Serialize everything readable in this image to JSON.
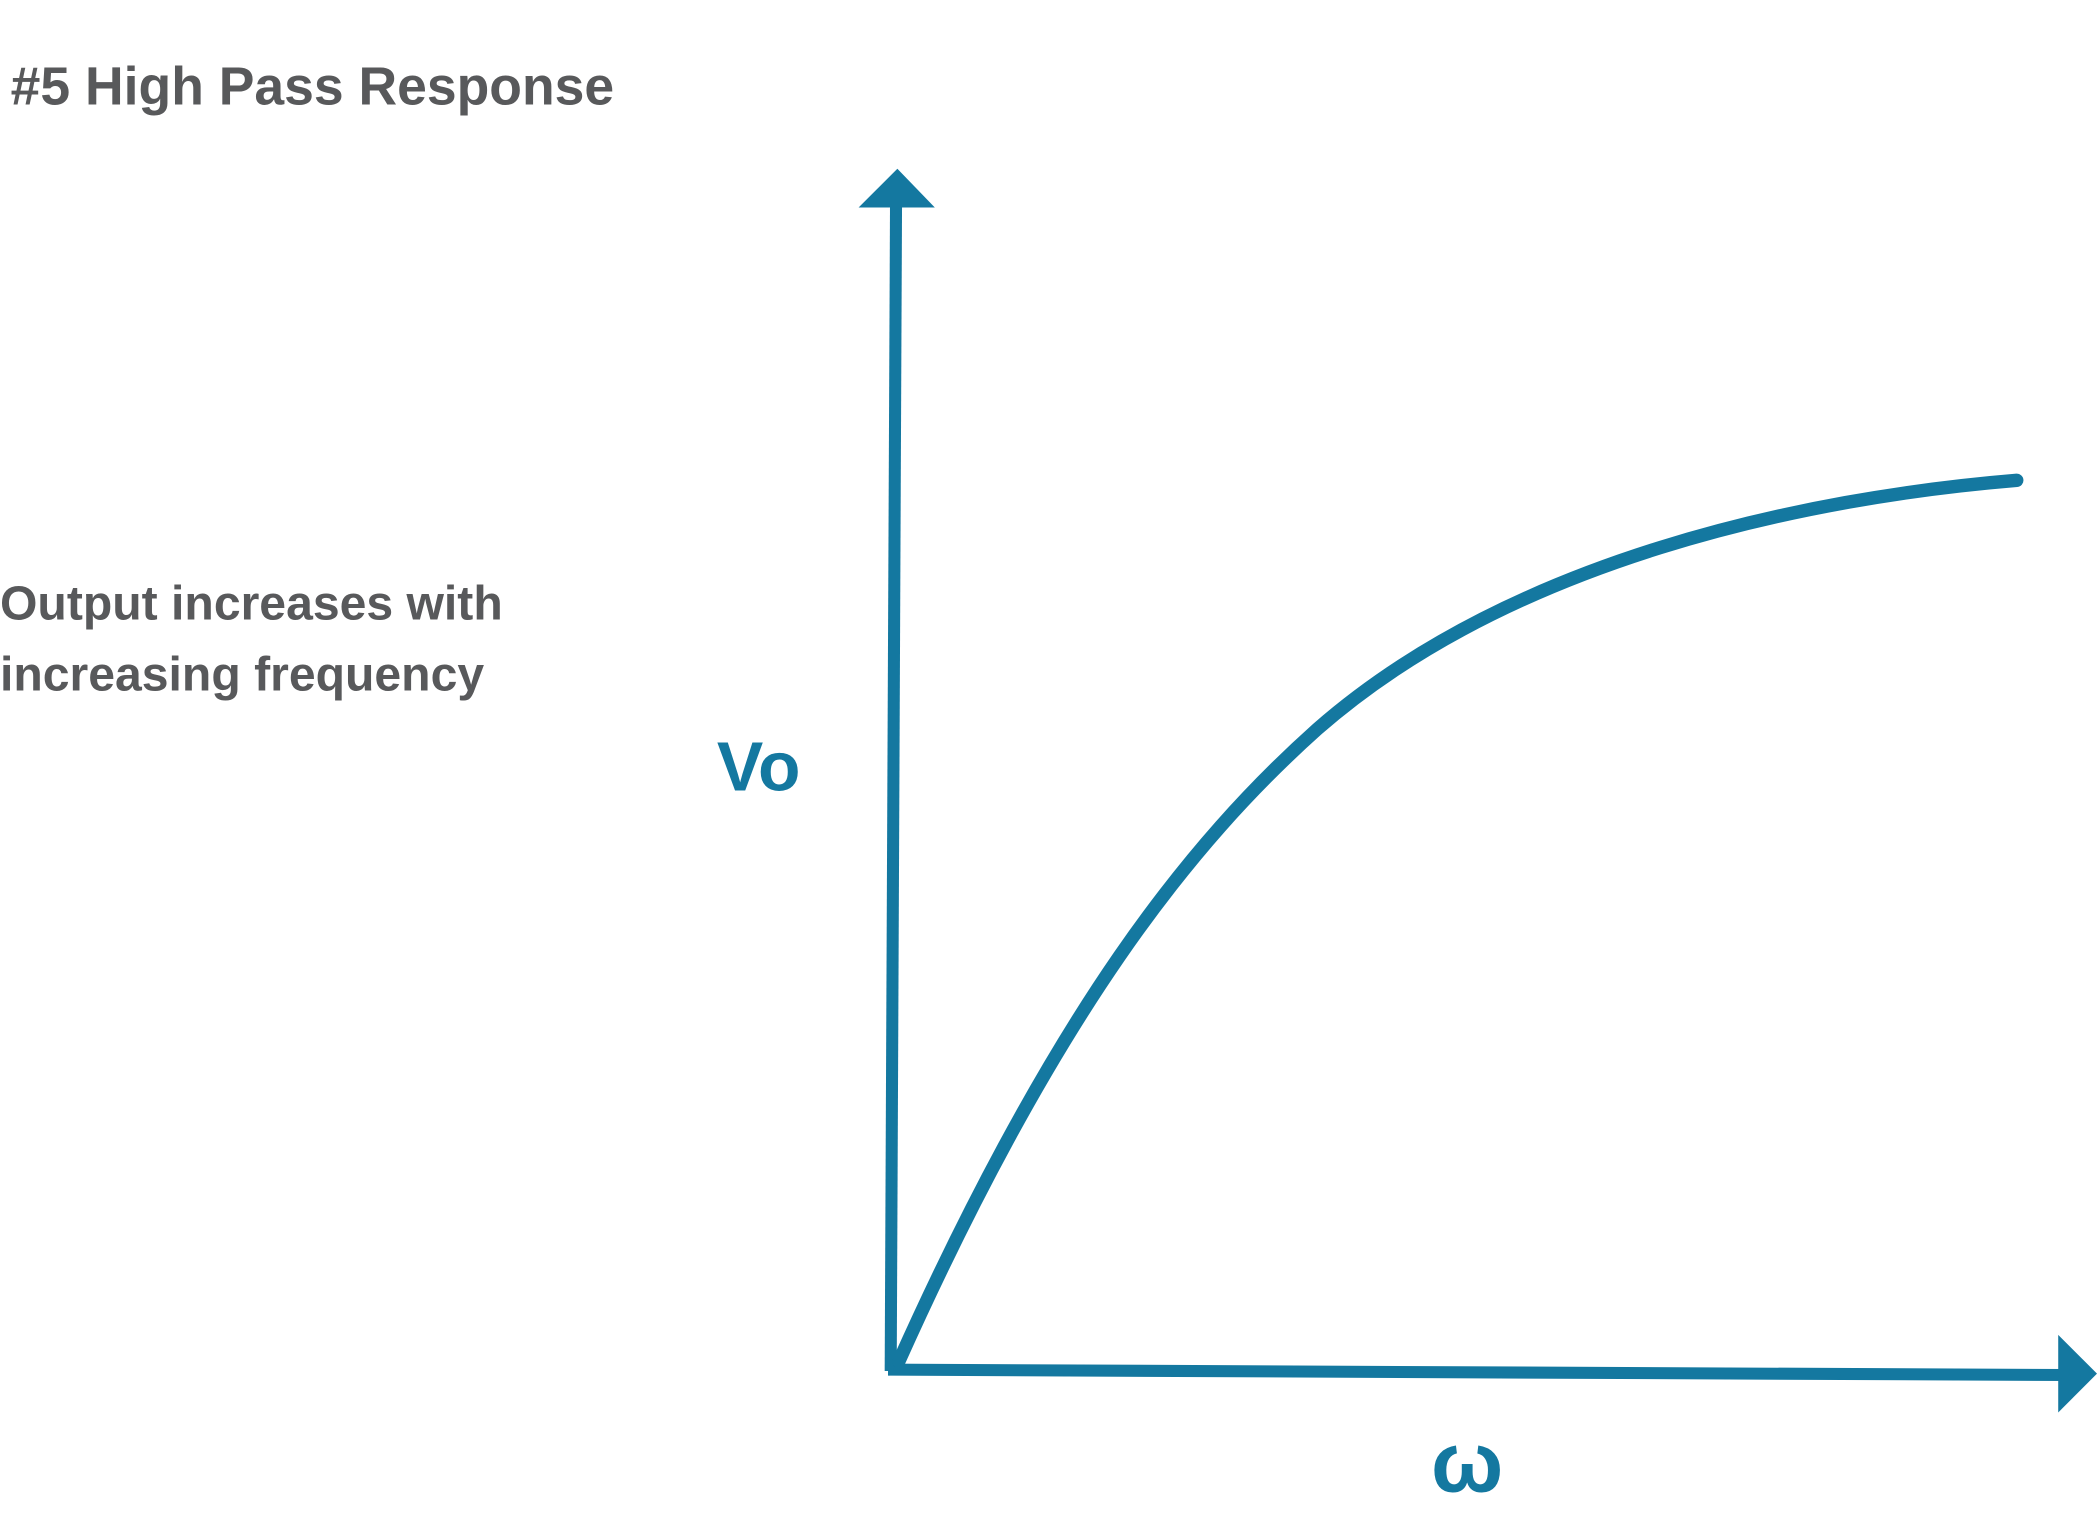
{
  "title": "#5 High Pass Response",
  "annotation": [
    "Output increases with",
    "increasing frequency"
  ],
  "colors": {
    "axis": "#1478a0",
    "curve": "#1478a0",
    "text": "#58595b"
  },
  "chart_data": {
    "type": "line",
    "title": "#5 High Pass Response",
    "xlabel": "ω",
    "ylabel": "Vo",
    "ticks": "none",
    "grid": false,
    "shape": "rises from origin and levels off at high frequency",
    "annotations": [
      "Output increases with increasing frequency"
    ]
  }
}
